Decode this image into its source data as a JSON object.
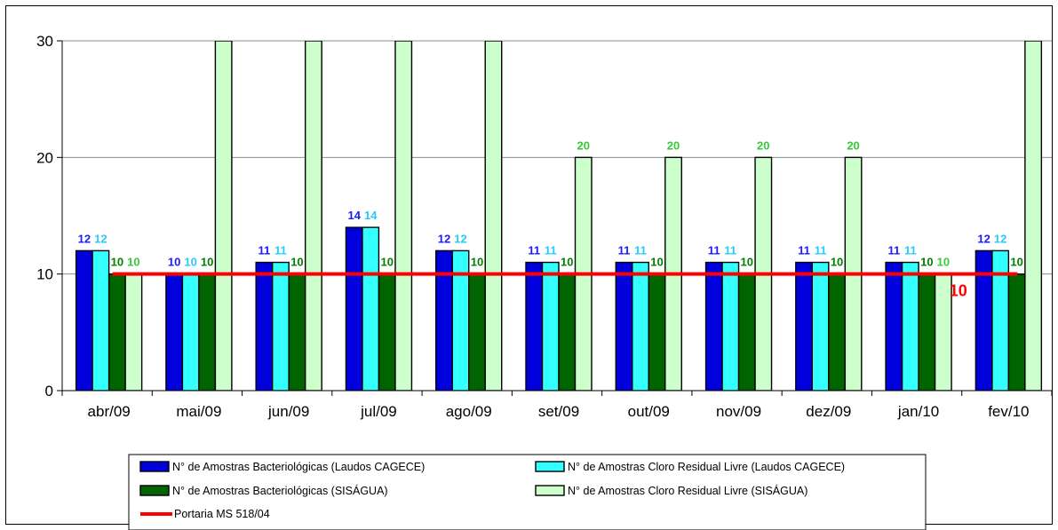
{
  "chart_data": {
    "type": "bar",
    "categories": [
      "abr/09",
      "mai/09",
      "jun/09",
      "jul/09",
      "ago/09",
      "set/09",
      "out/09",
      "nov/09",
      "dez/09",
      "jan/10",
      "fev/10"
    ],
    "ylim": [
      0,
      30
    ],
    "yticks": [
      0,
      10,
      20,
      30
    ],
    "series": [
      {
        "name": "N° de Amostras Bacteriológicas (Laudos CAGECE)",
        "color": "#0000dd",
        "label_color": "#1a1aff",
        "values": [
          12,
          10,
          11,
          14,
          12,
          11,
          11,
          11,
          11,
          11,
          12
        ],
        "labels": [
          "12",
          "10",
          "11",
          "14",
          "12",
          "11",
          "11",
          "11",
          "11",
          "11",
          "12"
        ]
      },
      {
        "name": "N° de Amostras Cloro Residual Livre (Laudos CAGECE)",
        "color": "#33ffff",
        "label_color": "#22ccff",
        "values": [
          12,
          10,
          11,
          14,
          12,
          11,
          11,
          11,
          11,
          11,
          12
        ],
        "labels": [
          "12",
          "10",
          "11",
          "14",
          "12",
          "11",
          "11",
          "11",
          "11",
          "11",
          "12"
        ]
      },
      {
        "name": "N° de Amostras Bacteriológicas (SISÁGUA)",
        "color": "#006400",
        "label_color": "#008000",
        "values": [
          10,
          10,
          10,
          10,
          10,
          10,
          10,
          10,
          10,
          10,
          10
        ],
        "labels": [
          "10",
          "10",
          "10",
          "10",
          "10",
          "10",
          "10",
          "10",
          "10",
          "10",
          "10"
        ]
      },
      {
        "name": "N° de Amostras Cloro Residual Livre (SISÁGUA)",
        "color": "#ccffcc",
        "label_color": "#33cc33",
        "values": [
          10,
          30,
          30,
          30,
          30,
          20,
          20,
          20,
          20,
          10,
          30
        ],
        "labels": [
          "10",
          "",
          "",
          "",
          "",
          "20",
          "20",
          "20",
          "20",
          "10",
          ""
        ]
      }
    ],
    "reference_line": {
      "name": "Portaria MS 518/04",
      "value": 10,
      "color": "#ff0000",
      "label": "10"
    },
    "legend_position": "bottom",
    "grid": "horizontal major lines"
  }
}
